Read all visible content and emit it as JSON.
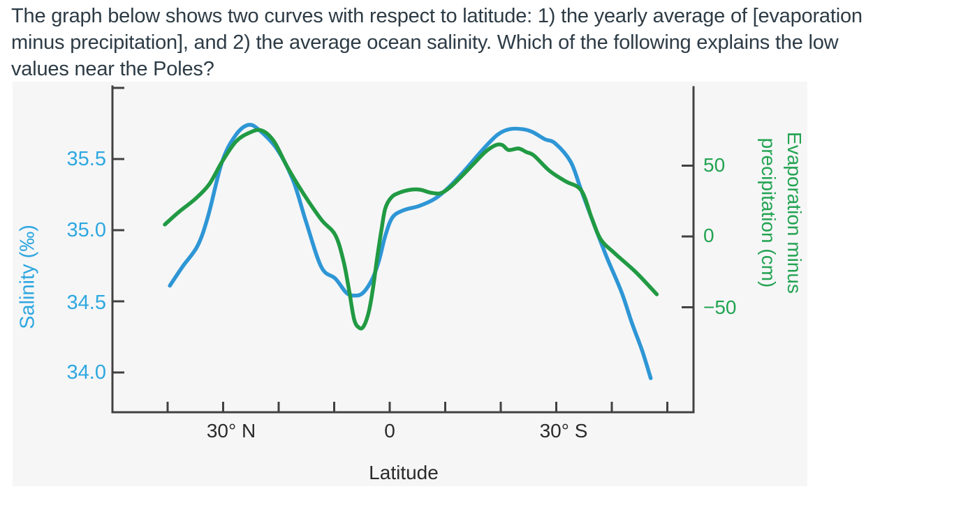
{
  "question": {
    "lines": [
      "The graph below shows two curves with respect to latitude: 1) the yearly average of [evaporation",
      "minus precipitation], and 2) the average ocean salinity. Which of the following explains the low",
      "values near the Poles?"
    ]
  },
  "chart": {
    "left_axis": {
      "title": "Salinity (‰)",
      "tick_labels": [
        "35.5",
        "35.0",
        "34.5",
        "34.0"
      ]
    },
    "right_axis": {
      "title_lines": [
        "Evaporation minus",
        "precipitation (cm)"
      ],
      "tick_labels": [
        "50",
        "0",
        "−50"
      ]
    },
    "x_axis": {
      "title": "Latitude",
      "tick_labels": [
        "30° N",
        "0",
        "30° S"
      ]
    },
    "colors": {
      "question_text": "#2d3b45",
      "salinity_curve": "#2e96d5",
      "salinity_text": "#2ea7e0",
      "emp_curve": "#219a43",
      "emp_text": "#22a351",
      "axis": "#414141",
      "x_text": "#2b2b2b",
      "panel_background": "#f6f6f7"
    }
  },
  "chart_data": {
    "type": "line",
    "xlabel": "Latitude",
    "x_unit": "degrees latitude (positive = °N, negative = °S)",
    "x_tick_values_deg": [
      40,
      30,
      20,
      10,
      0,
      -10,
      -20,
      -30,
      -40,
      -50
    ],
    "x_labeled_ticks": [
      {
        "value": 30,
        "label": "30° N"
      },
      {
        "value": 0,
        "label": "0"
      },
      {
        "value": -30,
        "label": "30° S"
      }
    ],
    "grid": false,
    "legend": "none (series identified by colored axes)",
    "series": [
      {
        "name": "Average ocean salinity",
        "axis": "left",
        "unit": "‰",
        "color": "#2e96d5",
        "yticks": [
          35.5,
          35.0,
          34.5,
          34.0
        ],
        "visible_axis_range": [
          33.7,
          36.0
        ],
        "points": [
          [
            39.6,
            34.61
          ],
          [
            37.2,
            34.75
          ],
          [
            34.6,
            34.89
          ],
          [
            32.7,
            35.1
          ],
          [
            30.2,
            35.48
          ],
          [
            27.7,
            35.67
          ],
          [
            25.4,
            35.74
          ],
          [
            23.4,
            35.7
          ],
          [
            20.3,
            35.57
          ],
          [
            17.4,
            35.35
          ],
          [
            15.0,
            35.05
          ],
          [
            12.3,
            34.74
          ],
          [
            9.8,
            34.66
          ],
          [
            7.8,
            34.56
          ],
          [
            6.3,
            34.54
          ],
          [
            4.8,
            34.56
          ],
          [
            3.1,
            34.66
          ],
          [
            1.9,
            34.79
          ],
          [
            0.8,
            34.96
          ],
          [
            -0.5,
            35.09
          ],
          [
            -2.5,
            35.14
          ],
          [
            -5.3,
            35.17
          ],
          [
            -8.1,
            35.22
          ],
          [
            -10.6,
            35.3
          ],
          [
            -13.5,
            35.42
          ],
          [
            -16.6,
            35.56
          ],
          [
            -19.4,
            35.67
          ],
          [
            -21.6,
            35.71
          ],
          [
            -23.9,
            35.71
          ],
          [
            -25.7,
            35.69
          ],
          [
            -27.9,
            35.64
          ],
          [
            -29.8,
            35.61
          ],
          [
            -32.6,
            35.48
          ],
          [
            -34.5,
            35.28
          ],
          [
            -37.1,
            35.01
          ],
          [
            -39.2,
            34.8
          ],
          [
            -41.8,
            34.56
          ],
          [
            -43.6,
            34.35
          ],
          [
            -45.5,
            34.15
          ],
          [
            -47.0,
            33.96
          ]
        ]
      },
      {
        "name": "Evaporation minus precipitation (yearly average)",
        "axis": "right",
        "unit": "cm",
        "color": "#219a43",
        "yticks": [
          50,
          0,
          -50
        ],
        "visible_axis_range": [
          -124,
          106
        ],
        "points": [
          [
            40.5,
            8.4
          ],
          [
            38.0,
            17.2
          ],
          [
            35.0,
            26.6
          ],
          [
            32.5,
            36.9
          ],
          [
            30.2,
            52.7
          ],
          [
            27.7,
            67.0
          ],
          [
            25.2,
            73.4
          ],
          [
            23.1,
            74.9
          ],
          [
            20.9,
            67.5
          ],
          [
            18.4,
            48.8
          ],
          [
            15.5,
            30.0
          ],
          [
            12.3,
            11.8
          ],
          [
            9.8,
            1.0
          ],
          [
            8.3,
            -17.7
          ],
          [
            7.3,
            -38.4
          ],
          [
            6.4,
            -58.6
          ],
          [
            5.5,
            -64.5
          ],
          [
            4.7,
            -63.5
          ],
          [
            3.8,
            -53.7
          ],
          [
            3.0,
            -36.5
          ],
          [
            2.3,
            -16.3
          ],
          [
            1.5,
            4.4
          ],
          [
            0.8,
            19.7
          ],
          [
            -0.3,
            27.6
          ],
          [
            -1.8,
            31.0
          ],
          [
            -3.8,
            33.0
          ],
          [
            -5.5,
            33.0
          ],
          [
            -7.3,
            31.0
          ],
          [
            -9.1,
            30.5
          ],
          [
            -10.8,
            34.5
          ],
          [
            -12.8,
            41.9
          ],
          [
            -15.1,
            51.2
          ],
          [
            -17.2,
            59.6
          ],
          [
            -19.1,
            64.5
          ],
          [
            -20.3,
            64.5
          ],
          [
            -21.4,
            61.1
          ],
          [
            -23.2,
            62.1
          ],
          [
            -24.6,
            59.6
          ],
          [
            -26.0,
            57.1
          ],
          [
            -28.8,
            46.3
          ],
          [
            -31.7,
            38.9
          ],
          [
            -34.5,
            32.5
          ],
          [
            -36.4,
            12.8
          ],
          [
            -38.0,
            -2.0
          ],
          [
            -40.5,
            -11.8
          ],
          [
            -44.3,
            -25.1
          ],
          [
            -48.1,
            -40.9
          ]
        ]
      }
    ]
  }
}
